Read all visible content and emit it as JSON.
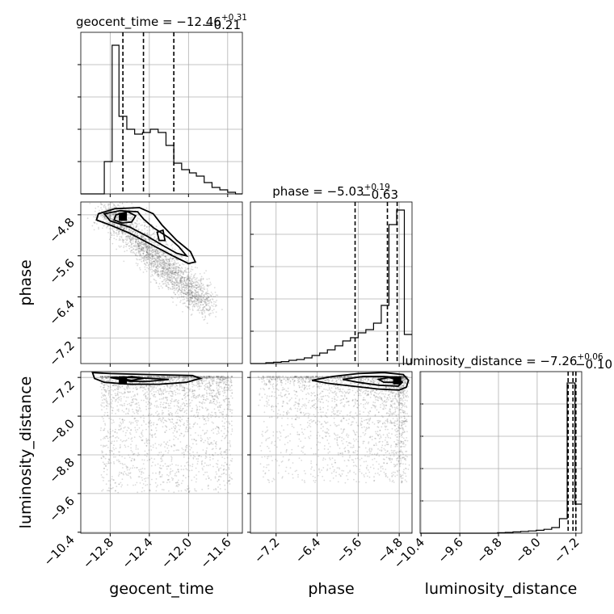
{
  "chart_data": {
    "type": "corner",
    "params": [
      "geocent_time",
      "phase",
      "luminosity_distance"
    ],
    "axis_labels": {
      "geocent_time": "geocent_time",
      "phase": "phase",
      "luminosity_distance": "luminosity_distance"
    },
    "titles": [
      {
        "param": "geocent_time",
        "text": "geocent_time = −12.46",
        "sup": "+0.31",
        "sub": "−0.21"
      },
      {
        "param": "phase",
        "text": "phase = −5.03",
        "sup": "+0.19",
        "sub": "−0.63"
      },
      {
        "param": "luminosity_distance",
        "text": "luminosity_distance = −7.26",
        "sup": "+0.06",
        "sub": "−0.10"
      }
    ],
    "ranges": {
      "geocent_time": [
        -13.1,
        -11.45
      ],
      "phase": [
        -7.7,
        -4.55
      ],
      "luminosity_distance": [
        -10.42,
        -7.08
      ]
    },
    "ticks": {
      "geocent_time": {
        "values": [
          -12.8,
          -12.4,
          -12.0,
          -11.6
        ],
        "labels": [
          "−12.8",
          "−12.4",
          "−12.0",
          "−11.6"
        ]
      },
      "phase": {
        "values": [
          -7.2,
          -6.4,
          -5.6,
          -4.8
        ],
        "labels": [
          "−7.2",
          "−6.4",
          "−5.6",
          "−4.8"
        ]
      },
      "luminosity_distance": {
        "values": [
          -10.4,
          -9.6,
          -8.8,
          -8.0,
          -7.2
        ],
        "labels": [
          "−10.4",
          "−9.6",
          "−8.8",
          "−8.0",
          "−7.2"
        ]
      }
    },
    "histograms": {
      "geocent_time": {
        "edges": [
          -13.1,
          -13.02,
          -12.94,
          -12.86,
          -12.78,
          -12.71,
          -12.63,
          -12.55,
          -12.47,
          -12.39,
          -12.31,
          -12.23,
          -12.15,
          -12.07,
          -11.99,
          -11.92,
          -11.84,
          -11.76,
          -11.68,
          -11.6,
          -11.52,
          -11.45
        ],
        "counts": [
          0.0,
          0.0,
          0.0,
          0.2,
          0.92,
          0.48,
          0.4,
          0.37,
          0.38,
          0.4,
          0.38,
          0.3,
          0.19,
          0.15,
          0.13,
          0.11,
          0.07,
          0.04,
          0.025,
          0.01,
          0.0
        ],
        "quantiles": [
          -12.67,
          -12.46,
          -12.15
        ]
      },
      "phase": {
        "edges": [
          -7.7,
          -7.55,
          -7.4,
          -7.25,
          -7.1,
          -6.95,
          -6.8,
          -6.65,
          -6.5,
          -6.35,
          -6.2,
          -6.05,
          -5.9,
          -5.75,
          -5.6,
          -5.45,
          -5.3,
          -5.15,
          -5.0,
          -4.85,
          -4.7,
          -4.55
        ],
        "counts": [
          0.0,
          0.0,
          0.005,
          0.008,
          0.012,
          0.02,
          0.025,
          0.035,
          0.05,
          0.065,
          0.085,
          0.11,
          0.14,
          0.16,
          0.19,
          0.21,
          0.25,
          0.36,
          0.86,
          0.95,
          0.18
        ],
        "quantiles": [
          -5.66,
          -5.03,
          -4.84
        ]
      },
      "luminosity_distance": {
        "edges": [
          -10.42,
          -10.26,
          -10.1,
          -9.94,
          -9.78,
          -9.62,
          -9.46,
          -9.3,
          -9.14,
          -8.98,
          -8.82,
          -8.66,
          -8.5,
          -8.34,
          -8.18,
          -8.02,
          -7.86,
          -7.7,
          -7.54,
          -7.38,
          -7.22,
          -7.08
        ],
        "counts": [
          0.0,
          0.0,
          0.0,
          0.0,
          0.0,
          0.0,
          0.0,
          0.0,
          0.0,
          0.0,
          0.003,
          0.005,
          0.008,
          0.011,
          0.014,
          0.018,
          0.024,
          0.035,
          0.09,
          0.93,
          0.18
        ],
        "quantiles": [
          -7.36,
          -7.26,
          -7.2
        ]
      }
    },
    "pairs": [
      {
        "x": "geocent_time",
        "y": "phase",
        "peak": [
          -12.67,
          -4.84
        ],
        "contours": [
          [
            [
              -12.92,
              -4.78
            ],
            [
              -12.75,
              -4.68
            ],
            [
              -12.5,
              -4.66
            ],
            [
              -12.36,
              -4.78
            ],
            [
              -12.27,
              -5.0
            ],
            [
              -12.12,
              -5.3
            ],
            [
              -11.98,
              -5.52
            ],
            [
              -11.93,
              -5.72
            ],
            [
              -12.0,
              -5.75
            ],
            [
              -12.16,
              -5.6
            ],
            [
              -12.36,
              -5.4
            ],
            [
              -12.6,
              -5.16
            ],
            [
              -12.8,
              -5.0
            ],
            [
              -12.94,
              -4.9
            ],
            [
              -12.92,
              -4.78
            ]
          ],
          [
            [
              -12.86,
              -4.78
            ],
            [
              -12.7,
              -4.72
            ],
            [
              -12.52,
              -4.74
            ],
            [
              -12.46,
              -4.88
            ],
            [
              -12.36,
              -5.05
            ],
            [
              -12.2,
              -5.25
            ],
            [
              -12.1,
              -5.42
            ],
            [
              -12.02,
              -5.6
            ],
            [
              -12.12,
              -5.55
            ],
            [
              -12.26,
              -5.4
            ],
            [
              -12.42,
              -5.22
            ],
            [
              -12.6,
              -5.04
            ],
            [
              -12.8,
              -4.92
            ],
            [
              -12.86,
              -4.78
            ]
          ],
          [
            [
              -12.74,
              -4.8
            ],
            [
              -12.62,
              -4.74
            ],
            [
              -12.54,
              -4.82
            ],
            [
              -12.58,
              -4.94
            ],
            [
              -12.68,
              -4.96
            ],
            [
              -12.76,
              -4.9
            ],
            [
              -12.74,
              -4.8
            ]
          ],
          [
            [
              -12.32,
              -5.14
            ],
            [
              -12.26,
              -5.1
            ],
            [
              -12.24,
              -5.3
            ],
            [
              -12.3,
              -5.3
            ],
            [
              -12.32,
              -5.14
            ]
          ]
        ]
      },
      {
        "x": "geocent_time",
        "y": "luminosity_distance",
        "peak": [
          -12.67,
          -7.26
        ],
        "contours": [
          [
            [
              -12.98,
              -7.1
            ],
            [
              -12.96,
              -7.22
            ],
            [
              -12.86,
              -7.3
            ],
            [
              -12.6,
              -7.34
            ],
            [
              -12.3,
              -7.34
            ],
            [
              -12.02,
              -7.3
            ],
            [
              -11.88,
              -7.22
            ],
            [
              -11.96,
              -7.16
            ],
            [
              -12.4,
              -7.14
            ],
            [
              -12.8,
              -7.12
            ],
            [
              -12.98,
              -7.1
            ]
          ],
          [
            [
              -12.8,
              -7.2
            ],
            [
              -12.6,
              -7.28
            ],
            [
              -12.4,
              -7.28
            ],
            [
              -12.2,
              -7.24
            ],
            [
              -12.4,
              -7.22
            ],
            [
              -12.6,
              -7.2
            ],
            [
              -12.8,
              -7.2
            ]
          ],
          [
            [
              -12.72,
              -7.22
            ],
            [
              -12.58,
              -7.18
            ],
            [
              -12.46,
              -7.22
            ],
            [
              -12.58,
              -7.26
            ],
            [
              -12.72,
              -7.22
            ]
          ]
        ]
      },
      {
        "x": "phase",
        "y": "luminosity_distance",
        "peak": [
          -4.84,
          -7.26
        ],
        "contours": [
          [
            [
              -6.5,
              -7.26
            ],
            [
              -6.1,
              -7.18
            ],
            [
              -5.6,
              -7.12
            ],
            [
              -5.1,
              -7.1
            ],
            [
              -4.72,
              -7.14
            ],
            [
              -4.62,
              -7.26
            ],
            [
              -4.66,
              -7.4
            ],
            [
              -4.8,
              -7.46
            ],
            [
              -5.2,
              -7.44
            ],
            [
              -5.7,
              -7.38
            ],
            [
              -6.2,
              -7.32
            ],
            [
              -6.5,
              -7.26
            ]
          ],
          [
            [
              -5.9,
              -7.24
            ],
            [
              -5.5,
              -7.18
            ],
            [
              -5.1,
              -7.18
            ],
            [
              -4.85,
              -7.2
            ],
            [
              -4.74,
              -7.3
            ],
            [
              -4.82,
              -7.38
            ],
            [
              -5.2,
              -7.36
            ],
            [
              -5.6,
              -7.3
            ],
            [
              -5.9,
              -7.24
            ]
          ],
          [
            [
              -5.2,
              -7.24
            ],
            [
              -5.0,
              -7.2
            ],
            [
              -4.86,
              -7.24
            ],
            [
              -4.9,
              -7.3
            ],
            [
              -5.1,
              -7.3
            ],
            [
              -5.2,
              -7.24
            ]
          ]
        ]
      }
    ]
  }
}
